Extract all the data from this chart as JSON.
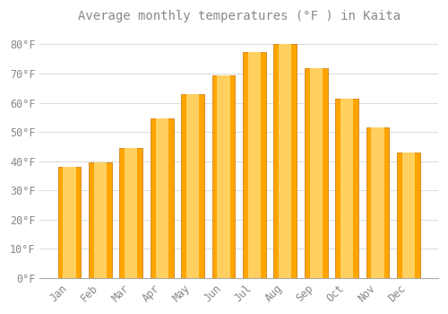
{
  "title": "Average monthly temperatures (°F ) in Kaita",
  "months": [
    "Jan",
    "Feb",
    "Mar",
    "Apr",
    "May",
    "Jun",
    "Jul",
    "Aug",
    "Sep",
    "Oct",
    "Nov",
    "Dec"
  ],
  "values": [
    38,
    39.5,
    44.5,
    54.5,
    63,
    69.5,
    77.5,
    80,
    72,
    61.5,
    51.5,
    43
  ],
  "bar_color_main": "#FFA500",
  "bar_color_light": "#FFD060",
  "background_color": "#FFFFFF",
  "grid_color": "#DDDDDD",
  "text_color": "#888888",
  "ylim": [
    0,
    85
  ],
  "yticks": [
    0,
    10,
    20,
    30,
    40,
    50,
    60,
    70,
    80
  ],
  "tick_label_suffix": "°F",
  "title_fontsize": 10,
  "tick_fontsize": 8.5,
  "bar_width": 0.75
}
